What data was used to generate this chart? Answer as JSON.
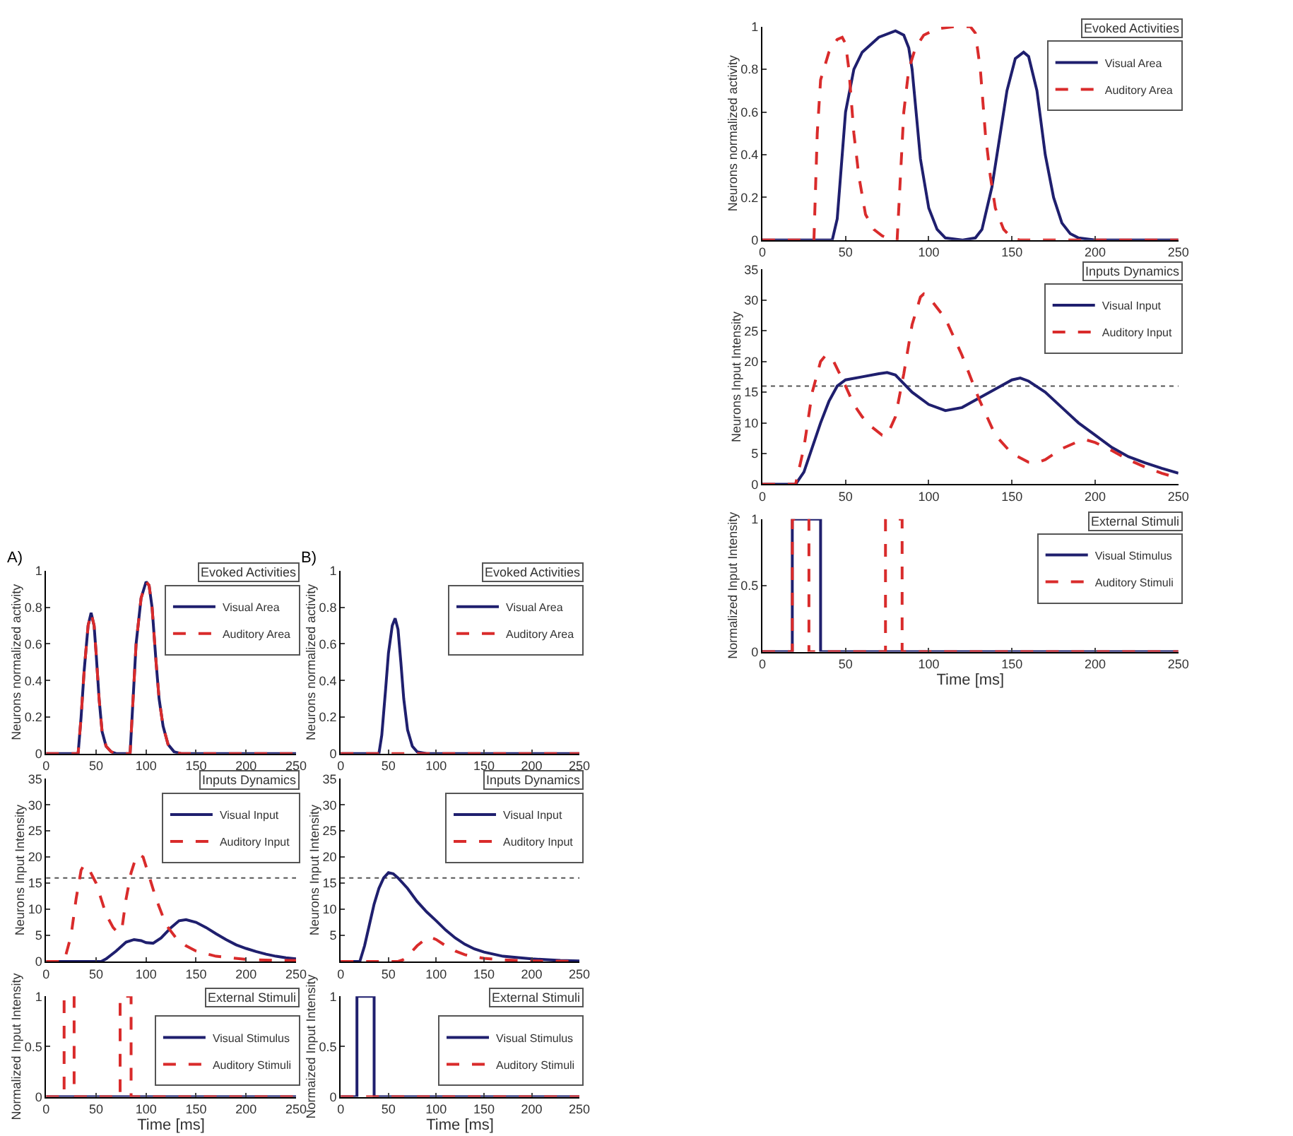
{
  "chart_data": [
    {
      "type": "line",
      "annotations": [
        "A)"
      ],
      "legend_title": "Evoked Activities",
      "ylabel": "Neurons normalized activity",
      "xlim": [
        0,
        250
      ],
      "xticks": [
        0,
        50,
        100,
        150,
        200,
        250
      ],
      "ylim": [
        0,
        1
      ],
      "yticks": [
        0,
        0.2,
        0.4,
        0.6,
        0.8,
        1
      ],
      "legend": "top right",
      "grid": false,
      "series": [
        {
          "name": "Visual Area",
          "color": "#1f1f6e",
          "line_style": "solid",
          "x": [
            0,
            32,
            35,
            38,
            42,
            45,
            48,
            50,
            53,
            56,
            60,
            65,
            70,
            84,
            86,
            90,
            95,
            100,
            103,
            106,
            110,
            113,
            117,
            122,
            128,
            135,
            250
          ],
          "values": [
            0,
            0,
            0.2,
            0.45,
            0.7,
            0.77,
            0.7,
            0.55,
            0.3,
            0.12,
            0.04,
            0.01,
            0,
            0,
            0.2,
            0.6,
            0.85,
            0.94,
            0.92,
            0.8,
            0.5,
            0.3,
            0.15,
            0.05,
            0.01,
            0,
            0
          ]
        },
        {
          "name": "Auditory Area",
          "color": "#d92b2b",
          "line_style": "dashed",
          "x": [
            0,
            32,
            35,
            38,
            42,
            45,
            48,
            50,
            53,
            56,
            60,
            65,
            70,
            84,
            86,
            90,
            95,
            100,
            103,
            106,
            110,
            113,
            117,
            122,
            128,
            135,
            250
          ],
          "values": [
            0,
            0,
            0.2,
            0.45,
            0.7,
            0.77,
            0.7,
            0.55,
            0.3,
            0.12,
            0.04,
            0.01,
            0,
            0,
            0.2,
            0.6,
            0.85,
            0.94,
            0.92,
            0.8,
            0.5,
            0.3,
            0.15,
            0.05,
            0.01,
            0,
            0
          ]
        }
      ]
    },
    {
      "type": "line",
      "legend_title": "Inputs Dynamics",
      "ylabel": "Neurons Input Intensity",
      "xlim": [
        0,
        250
      ],
      "xticks": [
        0,
        50,
        100,
        150,
        200,
        250
      ],
      "ylim": [
        0,
        35
      ],
      "yticks": [
        0,
        5,
        10,
        15,
        20,
        25,
        30,
        35
      ],
      "legend": "top right",
      "grid": false,
      "ref_lines": [
        {
          "axis": "y",
          "value": 16,
          "line_style": "dotted",
          "color": "#555555"
        }
      ],
      "series": [
        {
          "name": "Visual Input",
          "color": "#1f1f6e",
          "line_style": "solid",
          "x": [
            0,
            55,
            60,
            70,
            80,
            88,
            95,
            100,
            107,
            115,
            125,
            133,
            140,
            150,
            160,
            170,
            180,
            190,
            200,
            210,
            220,
            230,
            240,
            250
          ],
          "values": [
            0,
            0,
            0.5,
            2,
            3.7,
            4.2,
            4,
            3.6,
            3.5,
            4.5,
            6.5,
            7.8,
            8,
            7.5,
            6.5,
            5.3,
            4.2,
            3.2,
            2.5,
            1.9,
            1.4,
            1,
            0.7,
            0.5
          ]
        },
        {
          "name": "Auditory Input",
          "color": "#d92b2b",
          "line_style": "dashed",
          "x": [
            0,
            18,
            25,
            30,
            35,
            38,
            42,
            50,
            55,
            60,
            67,
            72,
            76,
            80,
            85,
            90,
            93,
            97,
            102,
            110,
            120,
            130,
            140,
            150,
            170,
            200,
            230,
            250
          ],
          "values": [
            0,
            0,
            5,
            12,
            17.5,
            18.5,
            18,
            15,
            12,
            9,
            6.5,
            5.5,
            6.5,
            12,
            17,
            20,
            20.5,
            20,
            17,
            12,
            7,
            4.5,
            3,
            2,
            1,
            0.4,
            0.2,
            0.2
          ]
        }
      ]
    },
    {
      "type": "line",
      "legend_title": "External Stimuli",
      "ylabel": "Normalized Input Intensity",
      "xlabel": "Time [ms]",
      "xlim": [
        0,
        250
      ],
      "xticks": [
        0,
        50,
        100,
        150,
        200,
        250
      ],
      "ylim": [
        0,
        1
      ],
      "yticks": [
        0,
        0.5,
        1
      ],
      "legend": "right",
      "grid": false,
      "series": [
        {
          "name": "Visual Stimulus",
          "color": "#1f1f6e",
          "line_style": "solid",
          "x": [
            0,
            250
          ],
          "values": [
            0,
            0
          ]
        },
        {
          "name": "Auditory Stimuli",
          "color": "#d92b2b",
          "line_style": "dashed",
          "x": [
            0,
            18,
            18,
            28,
            28,
            74,
            74,
            85,
            85,
            250
          ],
          "values": [
            0,
            0,
            1,
            1,
            0,
            0,
            1,
            1,
            0,
            0
          ]
        }
      ]
    },
    {
      "type": "line",
      "annotations": [
        "B)"
      ],
      "legend_title": "Evoked Activities",
      "ylabel": "Neurons normalized activity",
      "xlim": [
        0,
        250
      ],
      "xticks": [
        0,
        50,
        100,
        150,
        200,
        250
      ],
      "ylim": [
        0,
        1
      ],
      "yticks": [
        0,
        0.2,
        0.4,
        0.6,
        0.8,
        1
      ],
      "legend": "top right",
      "grid": false,
      "series": [
        {
          "name": "Visual Area",
          "color": "#1f1f6e",
          "line_style": "solid",
          "x": [
            0,
            40,
            43,
            47,
            50,
            54,
            57,
            60,
            63,
            66,
            70,
            75,
            80,
            90,
            250
          ],
          "values": [
            0,
            0,
            0.1,
            0.35,
            0.55,
            0.7,
            0.74,
            0.68,
            0.5,
            0.3,
            0.13,
            0.04,
            0.01,
            0,
            0
          ]
        },
        {
          "name": "Auditory Area",
          "color": "#d92b2b",
          "line_style": "dashed",
          "x": [
            0,
            250
          ],
          "values": [
            0,
            0
          ]
        }
      ]
    },
    {
      "type": "line",
      "legend_title": "Inputs Dynamics",
      "ylabel": "Neurons Input Intensity",
      "xlim": [
        0,
        250
      ],
      "xticks": [
        0,
        50,
        100,
        150,
        200,
        250
      ],
      "ylim": [
        0,
        35
      ],
      "yticks": [
        {
          "value": 0,
          "label": null
        },
        5,
        10,
        15,
        20,
        25,
        30,
        35
      ],
      "legend": "top right",
      "grid": false,
      "ref_lines": [
        {
          "axis": "y",
          "value": 16,
          "line_style": "dotted",
          "color": "#555555"
        }
      ],
      "series": [
        {
          "name": "Visual Input",
          "color": "#1f1f6e",
          "line_style": "solid",
          "x": [
            0,
            20,
            25,
            30,
            35,
            40,
            45,
            50,
            55,
            60,
            70,
            80,
            90,
            100,
            110,
            120,
            130,
            140,
            150,
            170,
            200,
            230,
            250
          ],
          "values": [
            0,
            0,
            3,
            7,
            11,
            14,
            16,
            17,
            16.8,
            16,
            14,
            11.5,
            9.5,
            7.8,
            6,
            4.5,
            3.3,
            2.4,
            1.8,
            1,
            0.5,
            0.2,
            0.1
          ]
        },
        {
          "name": "Auditory Input",
          "color": "#d92b2b",
          "line_style": "dashed",
          "x": [
            0,
            60,
            65,
            70,
            80,
            90,
            93,
            100,
            110,
            120,
            130,
            140,
            150,
            170,
            200,
            250
          ],
          "values": [
            0,
            0,
            0.3,
            1,
            3,
            4.5,
            4.7,
            4.2,
            3,
            2,
            1.3,
            0.9,
            0.6,
            0.3,
            0.1,
            0
          ]
        }
      ]
    },
    {
      "type": "line",
      "legend_title": "External Stimuli",
      "ylabel": "Normaized Input Intensity",
      "xlabel": "Time [ms]",
      "xlim": [
        0,
        250
      ],
      "xticks": [
        0,
        50,
        100,
        150,
        200,
        250
      ],
      "ylim": [
        0,
        1
      ],
      "yticks": [
        0,
        0.5,
        1
      ],
      "legend": "right",
      "grid": false,
      "series": [
        {
          "name": "Visual Stimulus",
          "color": "#1f1f6e",
          "line_style": "solid",
          "x": [
            0,
            17,
            17,
            35,
            35,
            250
          ],
          "values": [
            0,
            0,
            1,
            1,
            0,
            0
          ]
        },
        {
          "name": "Auditory Stimuli",
          "color": "#d92b2b",
          "line_style": "dashed",
          "x": [
            0,
            250
          ],
          "values": [
            0,
            0
          ]
        }
      ]
    },
    {
      "type": "line",
      "legend_title": "Evoked Activities",
      "ylabel": "Neurons normalized activity",
      "xlim": [
        0,
        250
      ],
      "xticks": [
        0,
        50,
        100,
        150,
        200,
        250
      ],
      "ylim": [
        0,
        1
      ],
      "yticks": [
        0,
        0.2,
        0.4,
        0.6,
        0.8,
        1
      ],
      "legend": "top right",
      "grid": false,
      "series": [
        {
          "name": "Visual Area",
          "color": "#1f1f6e",
          "line_style": "solid",
          "x": [
            0,
            42,
            45,
            48,
            50,
            55,
            60,
            70,
            80,
            85,
            88,
            90,
            93,
            95,
            100,
            105,
            110,
            120,
            128,
            132,
            138,
            142,
            147,
            152,
            157,
            160,
            165,
            170,
            175,
            180,
            185,
            190,
            200,
            250
          ],
          "values": [
            0,
            0,
            0.1,
            0.4,
            0.6,
            0.8,
            0.88,
            0.95,
            0.98,
            0.96,
            0.9,
            0.8,
            0.55,
            0.38,
            0.15,
            0.05,
            0.01,
            0,
            0.01,
            0.05,
            0.25,
            0.45,
            0.7,
            0.85,
            0.88,
            0.86,
            0.7,
            0.4,
            0.2,
            0.08,
            0.03,
            0.01,
            0,
            0
          ]
        },
        {
          "name": "Auditory Area",
          "color": "#d92b2b",
          "line_style": "dashed",
          "x": [
            0,
            31,
            33,
            35,
            40,
            45,
            48,
            50,
            52,
            55,
            58,
            62,
            67,
            72,
            78,
            81,
            83,
            85,
            88,
            92,
            97,
            105,
            115,
            125,
            128,
            131,
            134,
            137,
            140,
            145,
            150,
            155,
            250
          ],
          "values": [
            0,
            0,
            0.5,
            0.75,
            0.88,
            0.94,
            0.95,
            0.92,
            0.8,
            0.5,
            0.3,
            0.12,
            0.05,
            0.02,
            0,
            0,
            0.3,
            0.6,
            0.8,
            0.9,
            0.96,
            0.99,
            1,
            1,
            0.97,
            0.8,
            0.5,
            0.3,
            0.15,
            0.05,
            0.01,
            0,
            0
          ]
        }
      ]
    },
    {
      "type": "line",
      "legend_title": "Inputs Dynamics",
      "ylabel": "Neurons Input Intensity",
      "xlim": [
        0,
        250
      ],
      "xticks": [
        0,
        50,
        100,
        150,
        200,
        250
      ],
      "ylim": [
        0,
        35
      ],
      "yticks": [
        0,
        5,
        10,
        15,
        20,
        25,
        30,
        35
      ],
      "legend": "top right",
      "grid": false,
      "ref_lines": [
        {
          "axis": "y",
          "value": 16,
          "line_style": "dotted",
          "color": "#555555"
        }
      ],
      "series": [
        {
          "name": "Visual Input",
          "color": "#1f1f6e",
          "line_style": "solid",
          "x": [
            0,
            20,
            25,
            30,
            35,
            40,
            45,
            50,
            60,
            70,
            75,
            80,
            90,
            100,
            110,
            120,
            130,
            140,
            150,
            155,
            160,
            170,
            180,
            190,
            200,
            210,
            220,
            230,
            240,
            250
          ],
          "values": [
            0,
            0,
            2,
            6,
            10,
            13.5,
            16,
            17,
            17.5,
            18,
            18.2,
            17.8,
            15,
            13,
            12,
            12.5,
            14,
            15.5,
            17,
            17.3,
            16.8,
            15,
            12.5,
            10,
            8,
            6,
            4.5,
            3.5,
            2.6,
            1.8
          ]
        },
        {
          "name": "Auditory Input",
          "color": "#d92b2b",
          "line_style": "dashed",
          "x": [
            0,
            20,
            25,
            30,
            35,
            38,
            42,
            50,
            55,
            60,
            65,
            72,
            75,
            80,
            85,
            90,
            95,
            97,
            100,
            110,
            120,
            130,
            140,
            150,
            160,
            165,
            170,
            180,
            190,
            195,
            200,
            210,
            220,
            230,
            240,
            250
          ],
          "values": [
            0,
            0,
            6,
            15,
            20,
            21,
            20.5,
            16,
            13,
            11,
            9.5,
            8,
            8,
            11,
            18,
            26,
            30.5,
            31,
            30.5,
            27,
            21,
            14,
            8,
            5,
            3.6,
            3.5,
            4,
            5.8,
            7,
            7.2,
            6.8,
            5.5,
            4,
            2.8,
            1.8,
            1
          ]
        }
      ]
    },
    {
      "type": "line",
      "legend_title": "External Stimuli",
      "ylabel": "Normalized Input Intensity",
      "xlabel": "Time [ms]",
      "xlim": [
        0,
        250
      ],
      "xticks": [
        0,
        50,
        100,
        150,
        200,
        250
      ],
      "ylim": [
        0,
        1
      ],
      "yticks": [
        0,
        0.5,
        1
      ],
      "legend": "top right",
      "grid": false,
      "series": [
        {
          "name": "Visual Stimulus",
          "color": "#1f1f6e",
          "line_style": "solid",
          "x": [
            0,
            18,
            18,
            35,
            35,
            250
          ],
          "values": [
            0,
            0,
            1,
            1,
            0,
            0
          ]
        },
        {
          "name": "Auditory Stimuli",
          "color": "#d92b2b",
          "line_style": "dashed",
          "x": [
            0,
            18,
            18,
            28,
            28,
            74,
            74,
            84,
            84,
            250
          ],
          "values": [
            0,
            0,
            1,
            1,
            0,
            0,
            1,
            1,
            0,
            0
          ]
        }
      ]
    }
  ]
}
